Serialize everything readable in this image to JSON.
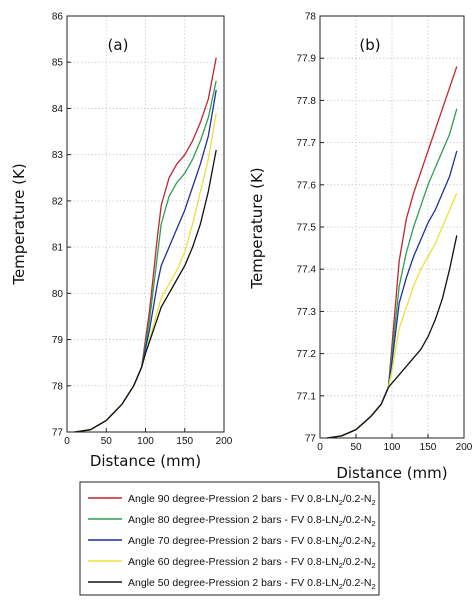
{
  "chart_data": [
    {
      "type": "line",
      "panel_label": "(a)",
      "xlabel": "Distance (mm)",
      "ylabel": "Temperature (K)",
      "xlim": [
        0,
        200
      ],
      "ylim": [
        77,
        86
      ],
      "xticks": [
        "0",
        "50",
        "100",
        "150",
        "200"
      ],
      "yticks": [
        "77",
        "78",
        "79",
        "80",
        "81",
        "82",
        "83",
        "84",
        "85",
        "86"
      ],
      "grid": true,
      "series": [
        {
          "name": "Angle 90 degree-Pression 2 bars - FV 0.8-LN2/0.2-N2",
          "color": "#c0262d",
          "x": [
            10,
            30,
            50,
            70,
            85,
            95,
            100,
            105,
            110,
            115,
            120,
            130,
            140,
            150,
            160,
            170,
            180,
            190
          ],
          "y": [
            77.0,
            77.05,
            77.25,
            77.6,
            78.0,
            78.4,
            79.0,
            79.6,
            80.4,
            81.2,
            81.9,
            82.5,
            82.8,
            83.0,
            83.3,
            83.7,
            84.2,
            85.1
          ]
        },
        {
          "name": "Angle 80 degree-Pression 2 bars - FV 0.8-LN2/0.2-N2",
          "color": "#2e9e4f",
          "x": [
            10,
            30,
            50,
            70,
            85,
            95,
            100,
            105,
            110,
            115,
            120,
            130,
            140,
            150,
            160,
            170,
            180,
            190
          ],
          "y": [
            77.0,
            77.05,
            77.25,
            77.6,
            78.0,
            78.4,
            78.9,
            79.4,
            80.1,
            80.8,
            81.5,
            82.1,
            82.4,
            82.6,
            82.9,
            83.3,
            83.8,
            84.6
          ]
        },
        {
          "name": "Angle 70 degree-Pression 2 bars - FV 0.8-LN2/0.2-N2",
          "color": "#1f2f9e",
          "x": [
            10,
            30,
            50,
            70,
            85,
            95,
            100,
            105,
            110,
            115,
            120,
            130,
            140,
            150,
            160,
            170,
            180,
            190
          ],
          "y": [
            77.0,
            77.05,
            77.25,
            77.6,
            78.0,
            78.4,
            78.8,
            79.2,
            79.7,
            80.2,
            80.6,
            81.0,
            81.4,
            81.8,
            82.3,
            82.8,
            83.4,
            84.4
          ]
        },
        {
          "name": "Angle 60 degree-Pression 2 bars - FV 0.8-LN2/0.2-N2",
          "color": "#e8e23a",
          "x": [
            10,
            30,
            50,
            70,
            85,
            95,
            100,
            105,
            110,
            115,
            120,
            130,
            140,
            150,
            160,
            170,
            180,
            190
          ],
          "y": [
            77.0,
            77.05,
            77.25,
            77.6,
            78.0,
            78.4,
            78.7,
            79.0,
            79.3,
            79.6,
            79.9,
            80.2,
            80.5,
            80.9,
            81.5,
            82.2,
            82.9,
            83.9
          ]
        },
        {
          "name": "Angle 50 degree-Pression 2 bars - FV 0.8-LN2/0.2-N2",
          "color": "#111111",
          "x": [
            10,
            30,
            50,
            70,
            85,
            95,
            100,
            105,
            110,
            115,
            120,
            130,
            140,
            150,
            160,
            170,
            180,
            190
          ],
          "y": [
            77.0,
            77.05,
            77.25,
            77.6,
            78.0,
            78.4,
            78.7,
            78.95,
            79.2,
            79.45,
            79.7,
            80.0,
            80.3,
            80.6,
            81.0,
            81.5,
            82.2,
            83.1
          ]
        }
      ]
    },
    {
      "type": "line",
      "panel_label": "(b)",
      "xlabel": "Distance (mm)",
      "ylabel": "Temperature (K)",
      "xlim": [
        0,
        200
      ],
      "ylim": [
        77,
        78
      ],
      "xticks": [
        "0",
        "50",
        "100",
        "150",
        "200"
      ],
      "yticks": [
        "77",
        "77.1",
        "77.2",
        "77.3",
        "77.4",
        "77.5",
        "77.6",
        "77.7",
        "77.8",
        "77.9",
        "78"
      ],
      "grid": true,
      "series": [
        {
          "name": "Angle 90 degree-Pression 2 bars - FV 0.8-LN2/0.2-N2",
          "color": "#c0262d",
          "x": [
            10,
            30,
            50,
            70,
            85,
            95,
            100,
            105,
            110,
            120,
            130,
            140,
            150,
            160,
            170,
            180,
            190
          ],
          "y": [
            77.0,
            77.005,
            77.02,
            77.05,
            77.08,
            77.12,
            77.22,
            77.32,
            77.42,
            77.52,
            77.58,
            77.63,
            77.68,
            77.73,
            77.78,
            77.83,
            77.88
          ]
        },
        {
          "name": "Angle 80 degree-Pression 2 bars - FV 0.8-LN2/0.2-N2",
          "color": "#2e9e4f",
          "x": [
            10,
            30,
            50,
            70,
            85,
            95,
            100,
            105,
            110,
            120,
            130,
            140,
            150,
            160,
            170,
            180,
            190
          ],
          "y": [
            77.0,
            77.005,
            77.02,
            77.05,
            77.08,
            77.12,
            77.2,
            77.28,
            77.36,
            77.44,
            77.5,
            77.55,
            77.6,
            77.64,
            77.68,
            77.72,
            77.78
          ]
        },
        {
          "name": "Angle 70 degree-Pression 2 bars - FV 0.8-LN2/0.2-N2",
          "color": "#1f2f9e",
          "x": [
            10,
            30,
            50,
            70,
            85,
            95,
            100,
            105,
            110,
            120,
            130,
            140,
            150,
            160,
            170,
            180,
            190
          ],
          "y": [
            77.0,
            77.005,
            77.02,
            77.05,
            77.08,
            77.12,
            77.18,
            77.25,
            77.32,
            77.38,
            77.43,
            77.47,
            77.51,
            77.54,
            77.58,
            77.62,
            77.68
          ]
        },
        {
          "name": "Angle 60 degree-Pression 2 bars - FV 0.8-LN2/0.2-N2",
          "color": "#e8e23a",
          "x": [
            10,
            30,
            50,
            70,
            85,
            95,
            100,
            105,
            110,
            120,
            130,
            140,
            150,
            160,
            170,
            180,
            190
          ],
          "y": [
            77.0,
            77.005,
            77.02,
            77.05,
            77.08,
            77.12,
            77.16,
            77.21,
            77.26,
            77.31,
            77.36,
            77.4,
            77.43,
            77.46,
            77.5,
            77.54,
            77.58
          ]
        },
        {
          "name": "Angle 50 degree-Pression 2 bars - FV 0.8-LN2/0.2-N2",
          "color": "#111111",
          "x": [
            10,
            30,
            50,
            70,
            85,
            95,
            100,
            105,
            110,
            120,
            130,
            140,
            150,
            160,
            170,
            180,
            190
          ],
          "y": [
            77.0,
            77.005,
            77.02,
            77.05,
            77.08,
            77.12,
            77.13,
            77.14,
            77.15,
            77.17,
            77.19,
            77.21,
            77.24,
            77.28,
            77.33,
            77.4,
            77.48
          ]
        }
      ]
    }
  ],
  "legend": {
    "entries": [
      {
        "main": "Angle 90 degree-Pression 2 bars - FV 0.8-LN",
        "sub1": "2",
        "mid": "/0.2-N",
        "sub2": "2",
        "color": "#c0262d"
      },
      {
        "main": "Angle 80 degree-Pression 2 bars - FV 0.8-LN",
        "sub1": "2",
        "mid": "/0.2-N",
        "sub2": "2",
        "color": "#2e9e4f"
      },
      {
        "main": "Angle 70 degree-Pression 2 bars - FV 0.8-LN",
        "sub1": "2",
        "mid": "/0.2-N",
        "sub2": "2",
        "color": "#1f2f9e"
      },
      {
        "main": "Angle 60 degree-Pression 2 bars - FV 0.8-LN",
        "sub1": "2",
        "mid": "/0.2-N",
        "sub2": "2",
        "color": "#e8e23a"
      },
      {
        "main": "Angle 50 degree-Pression 2 bars - FV 0.8-LN",
        "sub1": "2",
        "mid": "/0.2-N",
        "sub2": "2",
        "color": "#111111"
      }
    ]
  }
}
